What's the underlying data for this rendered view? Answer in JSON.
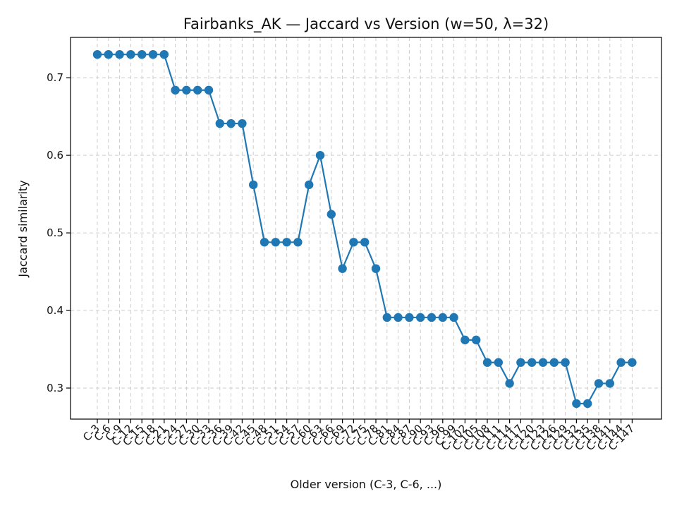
{
  "chart_data": {
    "type": "line",
    "title": "Fairbanks_AK — Jaccard vs Version (w=50, λ=32)",
    "xlabel": "Older version (C-3, C-6, ...)",
    "ylabel": "Jaccard similarity",
    "categories": [
      "C-3",
      "C-6",
      "C-9",
      "C-12",
      "C-15",
      "C-18",
      "C-21",
      "C-24",
      "C-27",
      "C-30",
      "C-33",
      "C-36",
      "C-39",
      "C-42",
      "C-45",
      "C-48",
      "C-51",
      "C-54",
      "C-57",
      "C-60",
      "C-63",
      "C-66",
      "C-69",
      "C-72",
      "C-75",
      "C-78",
      "C-81",
      "C-84",
      "C-87",
      "C-90",
      "C-93",
      "C-96",
      "C-99",
      "C-102",
      "C-105",
      "C-108",
      "C-111",
      "C-114",
      "C-117",
      "C-120",
      "C-123",
      "C-126",
      "C-129",
      "C-132",
      "C-135",
      "C-138",
      "C-141",
      "C-144",
      "C-147"
    ],
    "values": [
      0.73,
      0.73,
      0.73,
      0.73,
      0.73,
      0.73,
      0.73,
      0.684,
      0.684,
      0.684,
      0.684,
      0.641,
      0.641,
      0.641,
      0.562,
      0.488,
      0.488,
      0.488,
      0.488,
      0.562,
      0.6,
      0.524,
      0.454,
      0.488,
      0.488,
      0.454,
      0.391,
      0.391,
      0.391,
      0.391,
      0.391,
      0.391,
      0.391,
      0.362,
      0.362,
      0.333,
      0.333,
      0.306,
      0.333,
      0.333,
      0.333,
      0.333,
      0.333,
      0.28,
      0.28,
      0.306,
      0.306,
      0.333,
      0.333
    ],
    "ylim": [
      0.26,
      0.752
    ],
    "yticks": [
      0.3,
      0.4,
      0.5,
      0.6,
      0.7
    ],
    "ytick_labels": [
      "0.3",
      "0.4",
      "0.5",
      "0.6",
      "0.7"
    ],
    "grid": true,
    "series_color": "#1f77b4"
  }
}
